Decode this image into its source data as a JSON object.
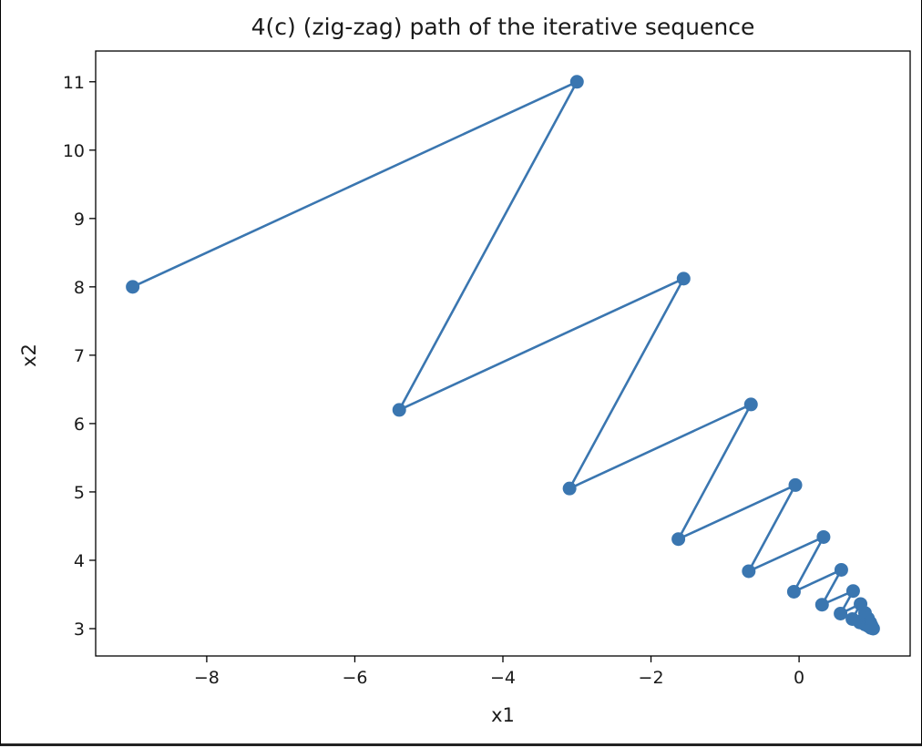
{
  "chart_data": {
    "type": "line",
    "title": "4(c) (zig-zag) path of the iterative sequence",
    "xlabel": "x1",
    "ylabel": "x2",
    "xlim": [
      -9.5,
      1.5
    ],
    "ylim": [
      2.6,
      11.45
    ],
    "xticks": [
      -8,
      -6,
      -4,
      -2,
      0
    ],
    "yticks": [
      3,
      4,
      5,
      6,
      7,
      8,
      9,
      10,
      11
    ],
    "xtick_labels": [
      "−8",
      "−6",
      "−4",
      "−2",
      "0"
    ],
    "ytick_labels": [
      "3",
      "4",
      "5",
      "6",
      "7",
      "8",
      "9",
      "10",
      "11"
    ],
    "grid": false,
    "marker": "circle",
    "color": "#3a76b0",
    "series": [
      {
        "points": [
          [
            -9.0,
            8.0
          ],
          [
            -3.0,
            11.0
          ],
          [
            -5.4,
            6.2
          ],
          [
            -1.56,
            8.12
          ],
          [
            -3.1,
            5.05
          ],
          [
            -0.65,
            6.28
          ],
          [
            -1.63,
            4.31
          ],
          [
            -0.05,
            5.1
          ],
          [
            -0.68,
            3.84
          ],
          [
            0.33,
            4.34
          ],
          [
            -0.07,
            3.54
          ],
          [
            0.57,
            3.86
          ],
          [
            0.31,
            3.35
          ],
          [
            0.73,
            3.55
          ],
          [
            0.56,
            3.22
          ],
          [
            0.83,
            3.36
          ],
          [
            0.72,
            3.14
          ],
          [
            0.89,
            3.23
          ],
          [
            0.82,
            3.09
          ],
          [
            0.93,
            3.15
          ],
          [
            0.89,
            3.06
          ],
          [
            0.96,
            3.09
          ],
          [
            0.93,
            3.04
          ],
          [
            0.97,
            3.06
          ],
          [
            0.96,
            3.02
          ],
          [
            0.98,
            3.04
          ],
          [
            0.97,
            3.01
          ],
          [
            1.0,
            3.0
          ]
        ]
      }
    ]
  }
}
